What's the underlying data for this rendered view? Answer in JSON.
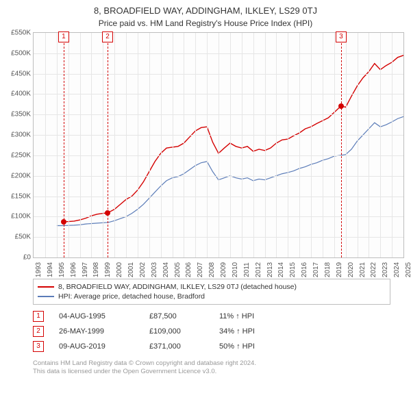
{
  "title": "8, BROADFIELD WAY, ADDINGHAM, ILKLEY, LS29 0TJ",
  "subtitle": "Price paid vs. HM Land Registry's House Price Index (HPI)",
  "chart": {
    "type": "line",
    "background_color": "#fdfdfd",
    "grid_color": "#e6e6e6",
    "border_color": "#bdbdbd",
    "x": {
      "min": 1993,
      "max": 2025,
      "tick_step": 1,
      "labels_rotated": true
    },
    "y": {
      "min": 0,
      "max": 550000,
      "tick_step": 50000,
      "prefix": "£",
      "suffix": "K",
      "divide": 1000
    },
    "label_fontsize": 10,
    "series": [
      {
        "id": "property",
        "label": "8, BROADFIELD WAY, ADDINGHAM, ILKLEY, LS29 0TJ (detached house)",
        "color": "#d40000",
        "line_width": 1.4,
        "x": [
          1995.6,
          1996,
          1996.5,
          1997,
          1997.5,
          1998,
          1998.5,
          1999,
          1999.4,
          2000,
          2000.5,
          2001,
          2001.5,
          2002,
          2002.5,
          2003,
          2003.5,
          2004,
          2004.5,
          2005,
          2005.5,
          2006,
          2006.5,
          2007,
          2007.5,
          2008,
          2008.5,
          2009,
          2009.5,
          2010,
          2010.5,
          2011,
          2011.5,
          2012,
          2012.5,
          2013,
          2013.5,
          2014,
          2014.5,
          2015,
          2015.5,
          2016,
          2016.5,
          2017,
          2017.5,
          2018,
          2018.5,
          2019,
          2019.6,
          2020,
          2020.5,
          2021,
          2021.5,
          2022,
          2022.5,
          2023,
          2023.5,
          2024,
          2024.5,
          2025
        ],
        "y": [
          87500,
          88000,
          89000,
          92000,
          96000,
          102000,
          106000,
          108000,
          109000,
          118000,
          130000,
          142000,
          150000,
          165000,
          185000,
          210000,
          235000,
          255000,
          268000,
          270000,
          272000,
          280000,
          295000,
          310000,
          318000,
          320000,
          282000,
          255000,
          268000,
          280000,
          272000,
          268000,
          272000,
          260000,
          265000,
          262000,
          268000,
          280000,
          288000,
          290000,
          298000,
          305000,
          315000,
          320000,
          328000,
          335000,
          342000,
          355000,
          371000,
          368000,
          395000,
          420000,
          440000,
          455000,
          475000,
          460000,
          470000,
          478000,
          490000,
          495000
        ]
      },
      {
        "id": "hpi",
        "label": "HPI: Average price, detached house, Bradford",
        "color": "#5b7cb8",
        "line_width": 1.2,
        "x": [
          1995,
          1995.5,
          1996,
          1996.5,
          1997,
          1997.5,
          1998,
          1998.5,
          1999,
          1999.5,
          2000,
          2000.5,
          2001,
          2001.5,
          2002,
          2002.5,
          2003,
          2003.5,
          2004,
          2004.5,
          2005,
          2005.5,
          2006,
          2006.5,
          2007,
          2007.5,
          2008,
          2008.5,
          2009,
          2009.5,
          2010,
          2010.5,
          2011,
          2011.5,
          2012,
          2012.5,
          2013,
          2013.5,
          2014,
          2014.5,
          2015,
          2015.5,
          2016,
          2016.5,
          2017,
          2017.5,
          2018,
          2018.5,
          2019,
          2019.5,
          2020,
          2020.5,
          2021,
          2021.5,
          2022,
          2022.5,
          2023,
          2023.5,
          2024,
          2024.5,
          2025
        ],
        "y": [
          78000,
          78000,
          78500,
          79000,
          80000,
          82000,
          83000,
          84000,
          85000,
          86000,
          90000,
          95000,
          100000,
          108000,
          118000,
          130000,
          145000,
          160000,
          175000,
          188000,
          195000,
          198000,
          205000,
          215000,
          225000,
          232000,
          235000,
          210000,
          190000,
          195000,
          200000,
          195000,
          192000,
          195000,
          188000,
          192000,
          190000,
          195000,
          200000,
          205000,
          208000,
          212000,
          218000,
          222000,
          228000,
          232000,
          238000,
          242000,
          248000,
          250000,
          252000,
          265000,
          285000,
          300000,
          315000,
          330000,
          320000,
          325000,
          332000,
          340000,
          345000
        ]
      }
    ],
    "markers": [
      {
        "n": "1",
        "x": 1995.6,
        "y": 87500,
        "color": "#d40000"
      },
      {
        "n": "2",
        "x": 1999.4,
        "y": 109000,
        "color": "#d40000"
      },
      {
        "n": "3",
        "x": 2019.6,
        "y": 371000,
        "color": "#d40000"
      }
    ]
  },
  "legend": {
    "rows": [
      {
        "color": "#d40000",
        "label": "8, BROADFIELD WAY, ADDINGHAM, ILKLEY, LS29 0TJ (detached house)"
      },
      {
        "color": "#5b7cb8",
        "label": "HPI: Average price, detached house, Bradford"
      }
    ]
  },
  "sales": [
    {
      "n": "1",
      "color": "#d40000",
      "date": "04-AUG-1995",
      "price": "£87,500",
      "delta": "11% ↑ HPI"
    },
    {
      "n": "2",
      "color": "#d40000",
      "date": "26-MAY-1999",
      "price": "£109,000",
      "delta": "34% ↑ HPI"
    },
    {
      "n": "3",
      "color": "#d40000",
      "date": "09-AUG-2019",
      "price": "£371,000",
      "delta": "50% ↑ HPI"
    }
  ],
  "footer": {
    "line1": "Contains HM Land Registry data © Crown copyright and database right 2024.",
    "line2": "This data is licensed under the Open Government Licence v3.0."
  }
}
